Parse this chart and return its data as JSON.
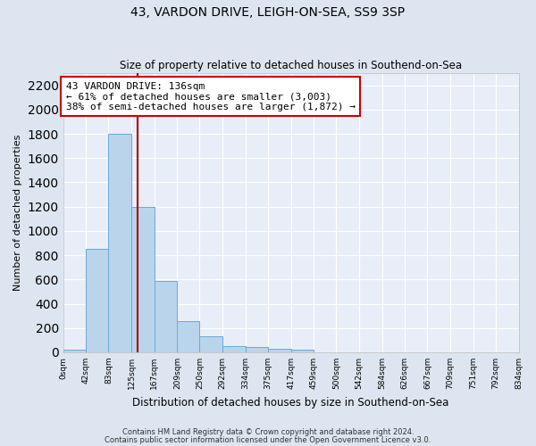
{
  "title": "43, VARDON DRIVE, LEIGH-ON-SEA, SS9 3SP",
  "subtitle": "Size of property relative to detached houses in Southend-on-Sea",
  "xlabel": "Distribution of detached houses by size in Southend-on-Sea",
  "ylabel": "Number of detached properties",
  "bin_edges": [
    0,
    42,
    83,
    125,
    167,
    209,
    250,
    292,
    334,
    375,
    417,
    459,
    500,
    542,
    584,
    626,
    667,
    709,
    751,
    792,
    834
  ],
  "bin_labels": [
    "0sqm",
    "42sqm",
    "83sqm",
    "125sqm",
    "167sqm",
    "209sqm",
    "250sqm",
    "292sqm",
    "334sqm",
    "375sqm",
    "417sqm",
    "459sqm",
    "500sqm",
    "542sqm",
    "584sqm",
    "626sqm",
    "667sqm",
    "709sqm",
    "751sqm",
    "792sqm",
    "834sqm"
  ],
  "bar_heights": [
    25,
    850,
    1800,
    1200,
    590,
    260,
    130,
    50,
    45,
    30,
    20,
    0,
    0,
    0,
    0,
    0,
    0,
    0,
    0,
    0
  ],
  "bar_color": "#bad4ec",
  "bar_edge_color": "#6aaad4",
  "property_size": 136,
  "annotation_title": "43 VARDON DRIVE: 136sqm",
  "annotation_line1": "← 61% of detached houses are smaller (3,003)",
  "annotation_line2": "38% of semi-detached houses are larger (1,872) →",
  "vline_color": "#aa0000",
  "annotation_box_color": "#ffffff",
  "annotation_box_edge": "#cc0000",
  "ylim": [
    0,
    2300
  ],
  "yticks": [
    0,
    200,
    400,
    600,
    800,
    1000,
    1200,
    1400,
    1600,
    1800,
    2000,
    2200
  ],
  "footer_line1": "Contains HM Land Registry data © Crown copyright and database right 2024.",
  "footer_line2": "Contains public sector information licensed under the Open Government Licence v3.0.",
  "bg_color": "#dde6f0",
  "plot_bg_color": "#e8eef8"
}
